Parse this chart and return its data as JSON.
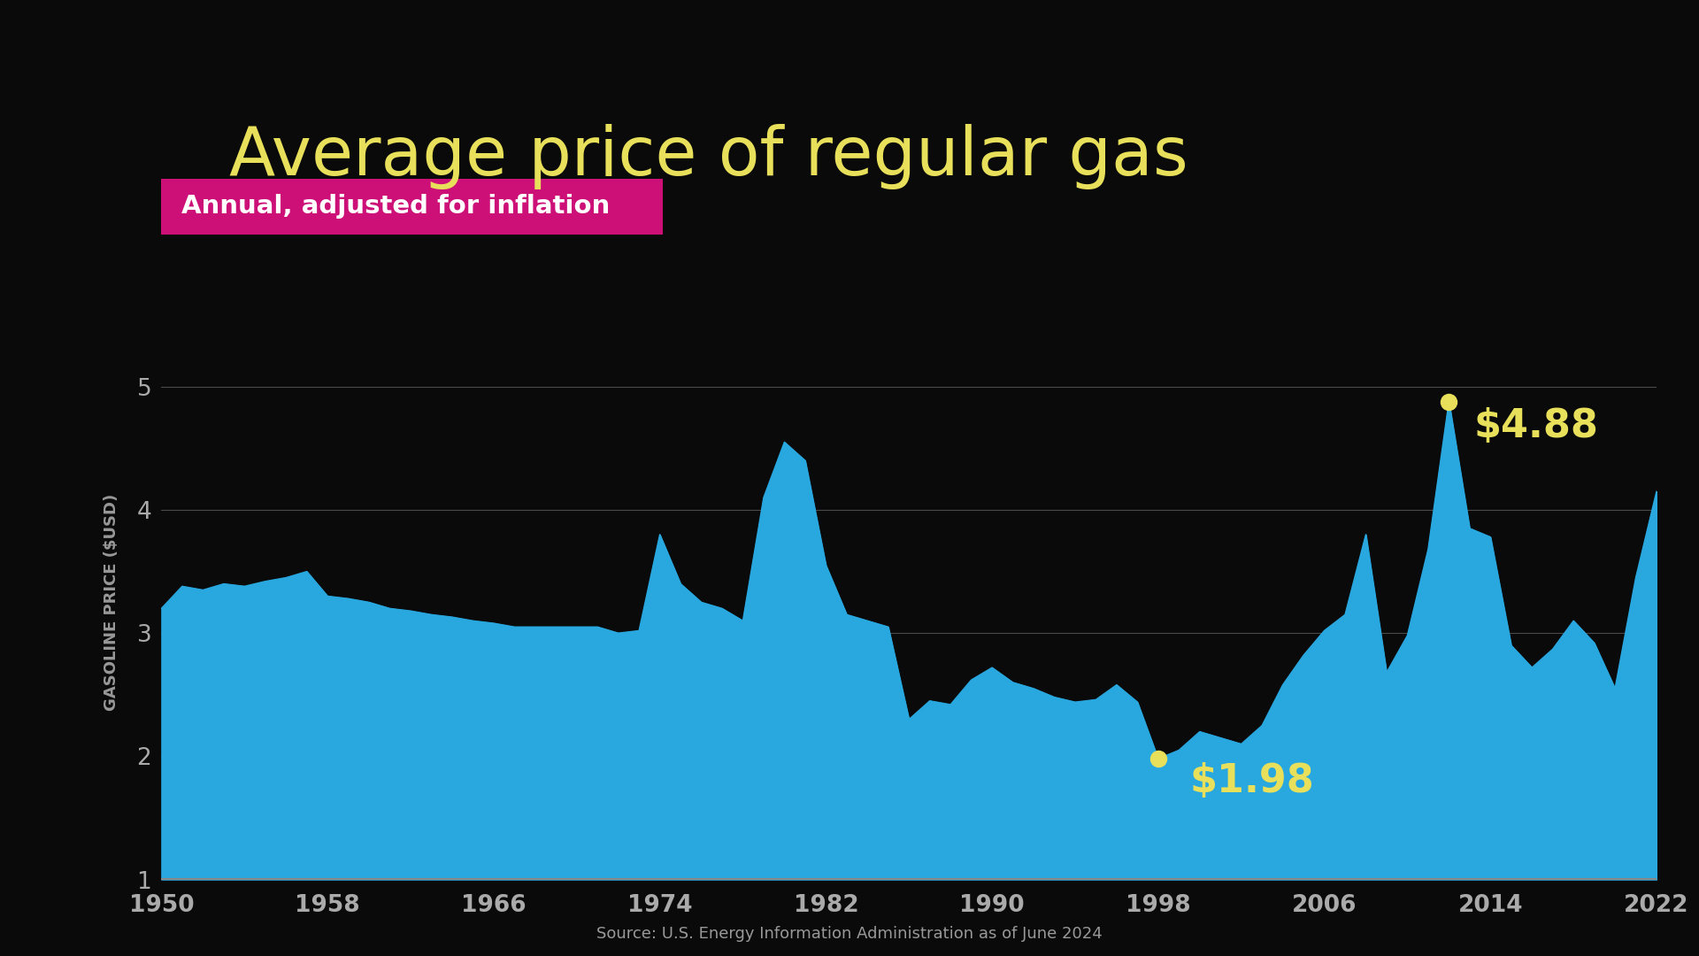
{
  "title": "Average price of regular gas",
  "subtitle": "Annual, adjusted for inflation",
  "ylabel": "GASOLINE PRICE ($USD)",
  "source": "Source: U.S. Energy Information Administration as of June 2024",
  "background_color": "#0a0a0a",
  "area_color": "#29a8e0",
  "title_color": "#e8df5a",
  "subtitle_bg_color": "#cc1078",
  "subtitle_text_color": "#ffffff",
  "annotation_color": "#e8df5a",
  "gridline_color": "#4a4a4a",
  "axis_label_color": "#999999",
  "tick_label_color": "#aaaaaa",
  "bottom_line_color": "#888888",
  "ylim": [
    1,
    5.5
  ],
  "xlim": [
    1950,
    2022
  ],
  "yticks": [
    1,
    2,
    3,
    4,
    5
  ],
  "xticks": [
    1950,
    1958,
    1966,
    1974,
    1982,
    1990,
    1998,
    2006,
    2014,
    2022
  ],
  "min_point": {
    "year": 1998,
    "value": 1.98,
    "label": "$1.98"
  },
  "max_point": {
    "year": 2012,
    "value": 4.88,
    "label": "$4.88"
  },
  "years": [
    1950,
    1951,
    1952,
    1953,
    1954,
    1955,
    1956,
    1957,
    1958,
    1959,
    1960,
    1961,
    1962,
    1963,
    1964,
    1965,
    1966,
    1967,
    1968,
    1969,
    1970,
    1971,
    1972,
    1973,
    1974,
    1975,
    1976,
    1977,
    1978,
    1979,
    1980,
    1981,
    1982,
    1983,
    1984,
    1985,
    1986,
    1987,
    1988,
    1989,
    1990,
    1991,
    1992,
    1993,
    1994,
    1995,
    1996,
    1997,
    1998,
    1999,
    2000,
    2001,
    2002,
    2003,
    2004,
    2005,
    2006,
    2007,
    2008,
    2009,
    2010,
    2011,
    2012,
    2013,
    2014,
    2015,
    2016,
    2017,
    2018,
    2019,
    2020,
    2021,
    2022
  ],
  "prices": [
    3.2,
    3.38,
    3.35,
    3.4,
    3.38,
    3.42,
    3.45,
    3.5,
    3.3,
    3.28,
    3.25,
    3.2,
    3.18,
    3.15,
    3.13,
    3.1,
    3.08,
    3.05,
    3.05,
    3.05,
    3.05,
    3.05,
    3.0,
    3.02,
    3.8,
    3.4,
    3.25,
    3.2,
    3.1,
    4.1,
    4.55,
    4.4,
    3.55,
    3.15,
    3.1,
    3.05,
    2.3,
    2.45,
    2.42,
    2.62,
    2.72,
    2.6,
    2.55,
    2.48,
    2.44,
    2.46,
    2.58,
    2.44,
    1.98,
    2.05,
    2.2,
    2.15,
    2.1,
    2.25,
    2.58,
    2.82,
    3.02,
    3.15,
    3.8,
    2.68,
    2.98,
    3.68,
    4.88,
    3.85,
    3.78,
    2.9,
    2.72,
    2.87,
    3.1,
    2.92,
    2.55,
    3.45,
    4.15
  ]
}
